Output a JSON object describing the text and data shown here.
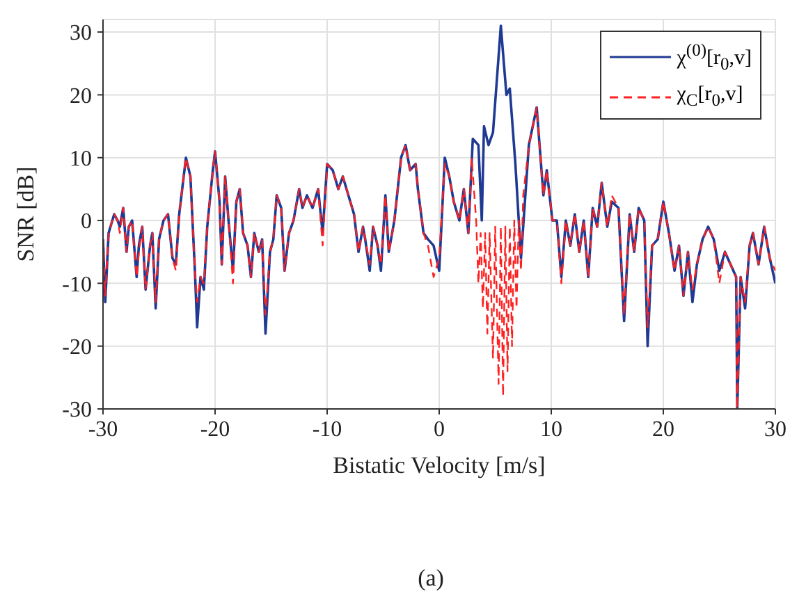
{
  "chart_data": {
    "type": "line",
    "xlabel": "Bistatic Velocity [m/s]",
    "ylabel": "SNR [dB]",
    "annotations": [
      "(a)"
    ],
    "xlim": [
      -30,
      30
    ],
    "ylim": [
      -30,
      32
    ],
    "xticks": [
      -30,
      -20,
      -10,
      0,
      10,
      20,
      30
    ],
    "yticks": [
      -30,
      -20,
      -10,
      0,
      10,
      20,
      30
    ],
    "grid": true,
    "legend": "top right",
    "marker": "none",
    "series": [
      {
        "name": "χ$^{(0)}$[r$_{0}$,v]",
        "color": "#1f3a93",
        "line_style": "solid",
        "x": [
          -30,
          -29.8,
          -29.5,
          -29,
          -28.7,
          -28.5,
          -28.2,
          -27.9,
          -27.7,
          -27.4,
          -27,
          -26.8,
          -26.5,
          -26.2,
          -25.8,
          -25.6,
          -25.3,
          -25,
          -24.6,
          -24.2,
          -23.8,
          -23.5,
          -23.2,
          -22.6,
          -22.2,
          -21.8,
          -21.6,
          -21.3,
          -21,
          -20.7,
          -20.2,
          -20,
          -19.6,
          -19.4,
          -19.1,
          -18.8,
          -18.4,
          -18.1,
          -17.8,
          -17.5,
          -17.1,
          -16.8,
          -16.5,
          -16.1,
          -15.8,
          -15.5,
          -15.1,
          -14.8,
          -14.5,
          -14.1,
          -13.8,
          -13.4,
          -13,
          -12.5,
          -12.2,
          -11.8,
          -11.3,
          -10.8,
          -10.4,
          -10,
          -9.5,
          -9,
          -8.6,
          -8.1,
          -7.6,
          -7.2,
          -6.8,
          -6.6,
          -6.2,
          -5.9,
          -5.5,
          -5.2,
          -4.8,
          -4.5,
          -4,
          -3.4,
          -3,
          -2.6,
          -2.1,
          -1.9,
          -1.4,
          -1,
          -0.5,
          0,
          0.5,
          0.9,
          1.3,
          1.8,
          2.2,
          2.6,
          3,
          3.5,
          3.8,
          4,
          4.4,
          4.8,
          5.5,
          6,
          6.3,
          6.8,
          7.3,
          8,
          8.7,
          9.3,
          9.6,
          10.1,
          10.5,
          10.9,
          11.3,
          11.7,
          12.1,
          12.5,
          12.9,
          13.3,
          13.7,
          14.1,
          14.5,
          15,
          15.4,
          16,
          16.5,
          17,
          17.4,
          17.8,
          18.3,
          18.6,
          19,
          19.5,
          20,
          20.5,
          21,
          21.4,
          21.8,
          22.2,
          22.6,
          23,
          23.5,
          24,
          24.5,
          25,
          25.5,
          26,
          26.5,
          26.6,
          26.9,
          27.3,
          27.7,
          28,
          28.5,
          29,
          29.5,
          30
        ],
        "values": [
          -3,
          -13,
          -2,
          1,
          0,
          -1,
          2,
          -5,
          -1,
          0,
          -9,
          -4,
          -1,
          -11,
          -4,
          -2,
          -14,
          -3,
          0,
          1,
          -6,
          -7,
          1,
          10,
          7,
          -8,
          -17,
          -9,
          -11,
          -1,
          8,
          11,
          3,
          -7,
          7,
          0,
          -8,
          3,
          5,
          -2,
          -4,
          -9,
          -2,
          -5,
          -3,
          -18,
          -5,
          -3,
          4,
          2,
          -8,
          -2,
          0,
          5,
          2,
          4,
          2,
          5,
          -2,
          9,
          8,
          5,
          7,
          4,
          1,
          -5,
          -1,
          -3,
          -8,
          -1,
          -4,
          -8,
          4,
          -5,
          0,
          10,
          12,
          8,
          9,
          5,
          -2,
          -3,
          -4,
          -8,
          10,
          7,
          3,
          0,
          5,
          -2,
          13,
          12,
          0,
          15,
          12,
          14,
          31,
          20,
          21,
          9,
          -6,
          12,
          18,
          4,
          8,
          0,
          0,
          -9,
          0,
          -4,
          1,
          -5,
          0,
          -9,
          2,
          -1,
          6,
          -1,
          3,
          2,
          -16,
          1,
          -5,
          2,
          0,
          -20,
          -4,
          -3,
          3,
          -2,
          -8,
          -4,
          -12,
          -5,
          -13,
          -7,
          -3,
          -1,
          -3,
          -8,
          -5,
          -7,
          -9,
          -30,
          -9,
          -14,
          -4,
          -2,
          -7,
          -1,
          -6,
          -10
        ]
      },
      {
        "name": "χ$_{C}$[r$_{0}$,v]",
        "color": "#ff2020",
        "line_style": "dashed",
        "x": [
          -30,
          -29.8,
          -29.5,
          -29,
          -28.7,
          -28.5,
          -28.2,
          -27.9,
          -27.7,
          -27.4,
          -27,
          -26.8,
          -26.5,
          -26.2,
          -25.8,
          -25.6,
          -25.3,
          -25,
          -24.6,
          -24.2,
          -23.8,
          -23.5,
          -23.2,
          -22.6,
          -22.2,
          -21.8,
          -21.6,
          -21.3,
          -21,
          -20.7,
          -20.2,
          -20,
          -19.6,
          -19.4,
          -19.1,
          -18.8,
          -18.4,
          -18.1,
          -17.8,
          -17.5,
          -17.1,
          -16.8,
          -16.5,
          -16.1,
          -15.8,
          -15.5,
          -15.1,
          -14.8,
          -14.5,
          -14.1,
          -13.8,
          -13.4,
          -13,
          -12.5,
          -12.2,
          -11.8,
          -11.3,
          -10.8,
          -10.4,
          -10,
          -9.5,
          -9,
          -8.6,
          -8.1,
          -7.6,
          -7.2,
          -6.8,
          -6.6,
          -6.2,
          -5.9,
          -5.5,
          -5.2,
          -4.8,
          -4.5,
          -4,
          -3.4,
          -3,
          -2.6,
          -2.1,
          -1.9,
          -1.4,
          -1,
          -0.5,
          0,
          0.5,
          0.9,
          1.3,
          1.8,
          2.2,
          2.6,
          2.9,
          3.3,
          3.5,
          3.7,
          3.9,
          4.1,
          4.3,
          4.5,
          4.8,
          5,
          5.3,
          5.5,
          5.7,
          5.9,
          6.1,
          6.3,
          6.5,
          6.7,
          6.9,
          7.1,
          7.3,
          7.5,
          8,
          8.7,
          9.3,
          9.6,
          10.1,
          10.5,
          10.9,
          11.3,
          11.7,
          12.1,
          12.5,
          12.9,
          13.3,
          13.7,
          14.1,
          14.5,
          15,
          15.4,
          16,
          16.5,
          17,
          17.4,
          17.8,
          18.3,
          18.6,
          19,
          19.5,
          20,
          20.5,
          21,
          21.4,
          21.8,
          22.2,
          22.6,
          23,
          23.5,
          24,
          24.5,
          25,
          25.5,
          26,
          26.5,
          26.6,
          26.9,
          27.3,
          27.7,
          28,
          28.5,
          29,
          29.5,
          30
        ],
        "values": [
          -3,
          -12,
          -2,
          1,
          0,
          -2,
          2,
          -5,
          -1,
          0,
          -9,
          -5,
          -1,
          -11,
          -4,
          -2,
          -13,
          -3,
          0,
          1,
          -6,
          -8,
          1,
          10,
          7,
          -8,
          -13,
          -9,
          -10,
          -1,
          8,
          11,
          3,
          -7,
          7,
          0,
          -10,
          3,
          5,
          -2,
          -4,
          -9,
          -2,
          -5,
          -3,
          -15,
          -5,
          -3,
          4,
          2,
          -8,
          -2,
          0,
          5,
          2,
          4,
          2,
          5,
          -4,
          9,
          8,
          5,
          7,
          4,
          1,
          -5,
          -1,
          -3,
          -7,
          -1,
          -4,
          -7,
          4,
          -5,
          0,
          10,
          12,
          8,
          9,
          5,
          -2,
          -4,
          -9,
          -6,
          9,
          7,
          3,
          0,
          5,
          -2,
          10,
          0,
          -10,
          -2,
          -14,
          -2,
          -18,
          -2,
          -22,
          -1,
          -26,
          -1,
          -28,
          -1,
          -24,
          -1,
          -20,
          0,
          -14,
          0,
          -8,
          4,
          12,
          18,
          4,
          8,
          0,
          0,
          -10,
          0,
          -4,
          1,
          -5,
          0,
          -9,
          2,
          -1,
          6,
          -1,
          4,
          2,
          -15,
          1,
          -5,
          2,
          0,
          -17,
          -4,
          -3,
          3,
          -2,
          -8,
          -4,
          -12,
          -5,
          -11,
          -7,
          -3,
          -1,
          -3,
          -10,
          -5,
          -7,
          -9,
          -30,
          -9,
          -13,
          -4,
          -2,
          -7,
          -1,
          -6,
          -8
        ]
      }
    ]
  }
}
